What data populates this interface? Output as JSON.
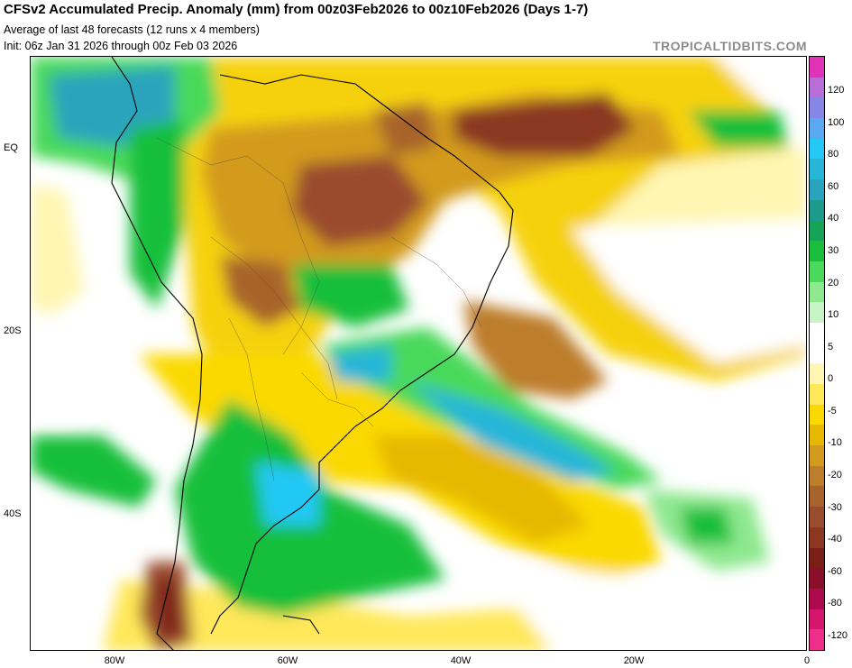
{
  "header": {
    "title": "CFSv2 Accumulated Precip. Anomaly (mm) from 00z03Feb2026 to 00z10Feb2026 (Days 1-7)",
    "subtitle": "Average of last 48 forecasts (12 runs x 4 members)",
    "init": "Init: 06z Jan 31 2026 through 00z Feb 03 2026",
    "credit": "TROPICALTIDBITS.COM"
  },
  "axes": {
    "lat_labels": [
      "EQ",
      "20S",
      "40S"
    ],
    "lon_labels": [
      "80W",
      "60W",
      "40W",
      "20W",
      "0"
    ]
  },
  "colorbar": {
    "labels": [
      "120",
      "100",
      "80",
      "60",
      "40",
      "30",
      "20",
      "10",
      "5",
      "0",
      "-5",
      "-10",
      "-20",
      "-30",
      "-40",
      "-60",
      "-80",
      "-120"
    ],
    "colors": [
      "#e033b8",
      "#b86ed6",
      "#8686e6",
      "#5aa8f0",
      "#23c8f5",
      "#27b6d8",
      "#2aa4bc",
      "#1c9a8c",
      "#13a455",
      "#19bf3b",
      "#4ad95a",
      "#8de88e",
      "#c6f4c6",
      "#ffffff",
      "#ffffff",
      "#fff6b3",
      "#ffe85a",
      "#fad900",
      "#e6b800",
      "#d39a1d",
      "#bd7d2a",
      "#a8632c",
      "#9a4c2e",
      "#8b3722",
      "#7a1f14",
      "#8a0f2a",
      "#b00a4e",
      "#d6156c",
      "#ef2d8a"
    ]
  },
  "legend_anomaly_colors": {
    "wet_strong": "#23c8f5",
    "wet": "#19bf3b",
    "neutral": "#ffffff",
    "dry_light": "#ffe85a",
    "dry": "#e6b800",
    "dry_strong": "#9a4c2e"
  }
}
